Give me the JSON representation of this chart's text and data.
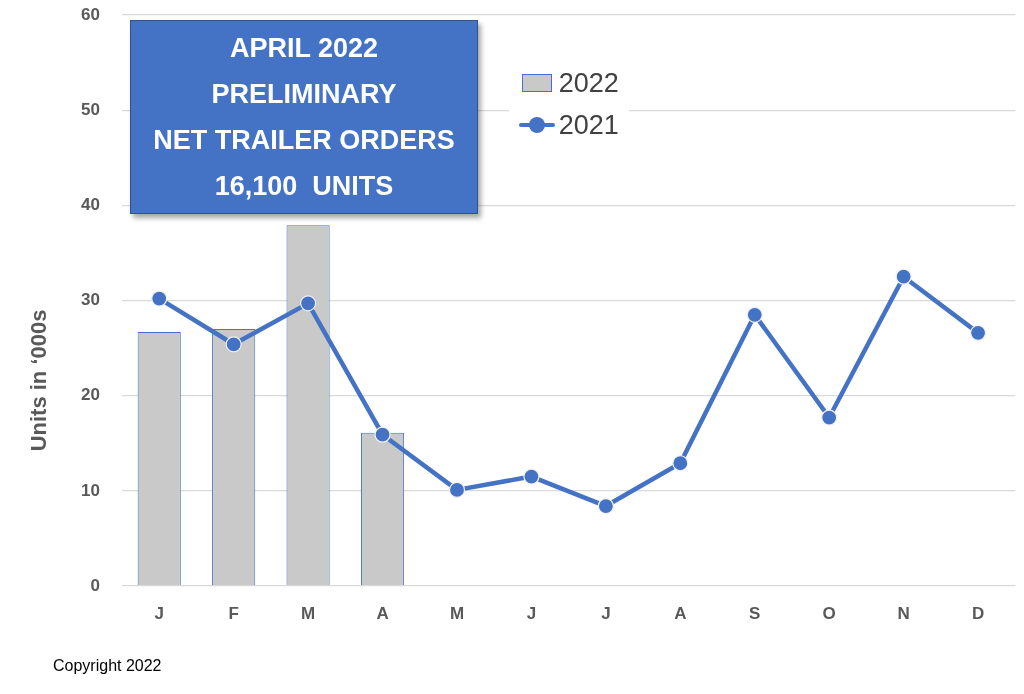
{
  "chart_data": {
    "type": "bar",
    "title": "APRIL 2022\nPRELIMINARY\nNET TRAILER ORDERS\n16,100  UNITS",
    "ylabel": "Units in ‘000s",
    "categories": [
      "J",
      "F",
      "M",
      "A",
      "M",
      "J",
      "J",
      "A",
      "S",
      "O",
      "N",
      "D"
    ],
    "series": [
      {
        "name": "2022",
        "color": "#c9c9c9",
        "values": [
          26.7,
          27.0,
          37.9,
          16.1,
          null,
          null,
          null,
          null,
          null,
          null,
          null,
          null
        ]
      },
      {
        "name": "2021",
        "type": "line",
        "color": "#4472c4",
        "values": [
          30.2,
          25.4,
          29.7,
          15.9,
          10.1,
          11.5,
          8.4,
          12.9,
          28.5,
          17.7,
          32.5,
          26.6
        ]
      }
    ],
    "ylim": [
      0,
      60
    ],
    "yticks": [
      0,
      10,
      20,
      30,
      40,
      50,
      60
    ],
    "grid": "y",
    "legend": "top",
    "marker": "circle",
    "annotations": [
      "Copyright 2022"
    ]
  }
}
